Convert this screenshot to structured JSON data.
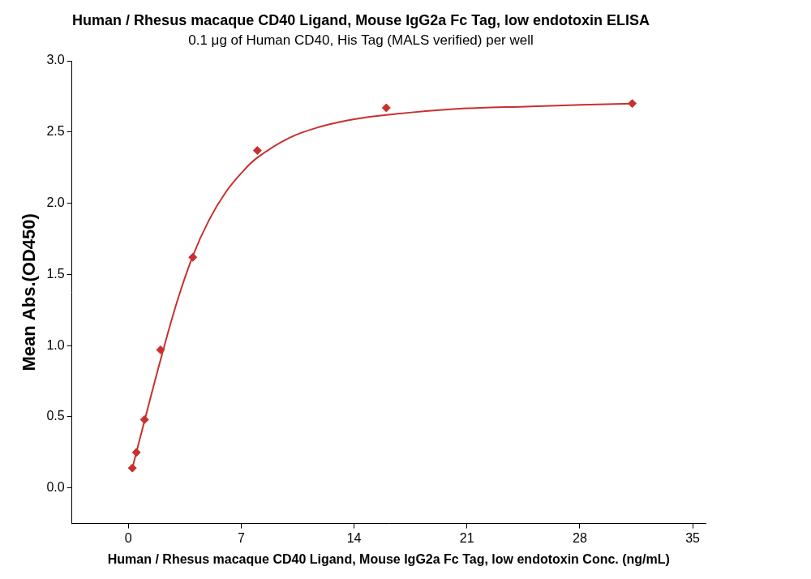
{
  "chart_data": {
    "type": "scatter",
    "title": "Human / Rhesus macaque CD40 Ligand, Mouse IgG2a Fc Tag, low endotoxin ELISA",
    "subtitle": "0.1 μg of Human CD40, His Tag (MALS verified) per well",
    "x_label": "Human / Rhesus macaque CD40 Ligand, Mouse IgG2a Fc Tag, low endotoxin Conc. (ng/mL)",
    "y_label": "Mean Abs.(OD450)",
    "series": [
      {
        "type": "scatter",
        "marker": "diamond",
        "color": "#c8302f",
        "x": [
          0.25,
          0.5,
          1,
          2,
          4,
          8,
          16,
          31.25
        ],
        "values": [
          0.14,
          0.25,
          0.48,
          0.97,
          1.62,
          2.37,
          2.67,
          2.7
        ]
      },
      {
        "type": "line",
        "line_style": "solid",
        "color": "#c8302f",
        "x": [
          0.25,
          0.5,
          1,
          2,
          3,
          4,
          5,
          6,
          7,
          8,
          10,
          12,
          14,
          16,
          20,
          25,
          31.25
        ],
        "values": [
          0.14,
          0.25,
          0.47,
          0.9,
          1.3,
          1.63,
          1.88,
          2.07,
          2.21,
          2.32,
          2.46,
          2.54,
          2.59,
          2.62,
          2.66,
          2.68,
          2.7
        ]
      }
    ],
    "xlim": [
      -3.5,
      35.8
    ],
    "xticks": [
      0,
      7,
      14,
      21,
      28,
      35
    ],
    "ylim": [
      -0.25,
      3
    ],
    "yticks": [
      {
        "value": 0,
        "label": "0.0"
      },
      0.5,
      {
        "value": 1,
        "label": "1.0"
      },
      1.5,
      {
        "value": 2,
        "label": "2.0"
      },
      2.5,
      {
        "value": 3,
        "label": "3.0"
      }
    ],
    "grid": false
  }
}
